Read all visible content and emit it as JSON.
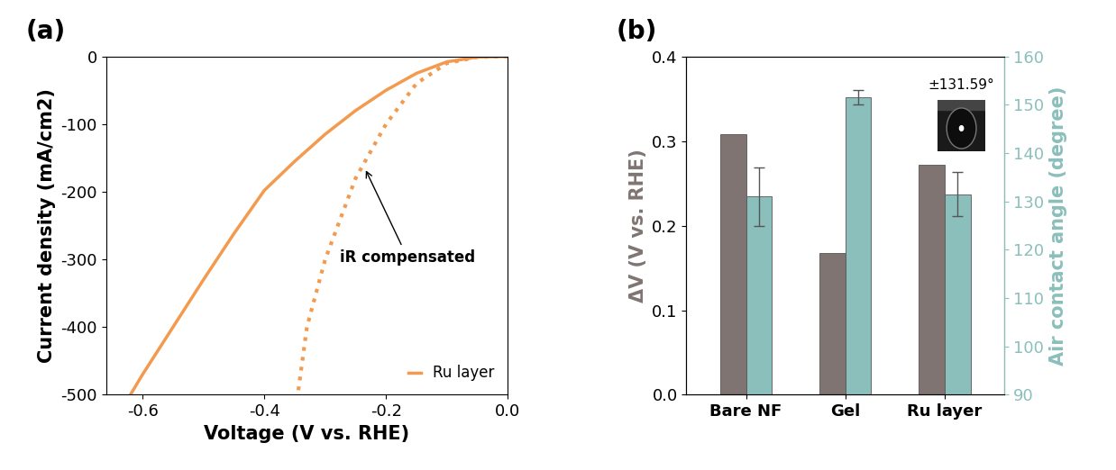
{
  "chart_data": [
    {
      "type": "line",
      "title": "(a)",
      "x_label": "Voltage (V vs. RHE)",
      "y_label": "Current density (mA/cm2)",
      "xlim": [
        -0.66,
        0.0
      ],
      "xticks": [
        -0.6,
        -0.4,
        -0.2,
        0.0
      ],
      "ylim": [
        -500,
        0
      ],
      "yticks": [
        -500,
        -400,
        -300,
        -200,
        -100,
        0
      ],
      "legend": "lower right",
      "series": [
        {
          "name": "Ru layer",
          "color": "#f39a4f",
          "line_style": "solid",
          "x": [
            0.0,
            -0.05,
            -0.1,
            -0.15,
            -0.2,
            -0.25,
            -0.3,
            -0.35,
            -0.4,
            -0.45,
            -0.5,
            -0.55,
            -0.6,
            -0.62
          ],
          "values": [
            0,
            -1,
            -8,
            -25,
            -50,
            -80,
            -115,
            -155,
            -198,
            -262,
            -330,
            -400,
            -470,
            -500
          ]
        },
        {
          "color": "#f39a4f",
          "line_style": "dotted",
          "x": [
            0.0,
            -0.05,
            -0.1,
            -0.15,
            -0.2,
            -0.25,
            -0.3,
            -0.33,
            -0.345
          ],
          "values": [
            0,
            -1,
            -10,
            -40,
            -100,
            -180,
            -300,
            -400,
            -500
          ]
        }
      ],
      "annotations": [
        {
          "text": "iR compensated",
          "x": -0.235,
          "y": -165
        }
      ]
    },
    {
      "type": "bar",
      "title": "(b)",
      "y_label": "ΔV (V vs. RHE)",
      "y2_label": "Air contact angle (degree)",
      "categories": [
        "Bare NF",
        "Gel",
        "Ru layer"
      ],
      "ylim": [
        0,
        0.4
      ],
      "yticks": [
        0.0,
        0.1,
        0.2,
        0.3,
        0.4
      ],
      "y2lim": [
        90,
        160
      ],
      "y2ticks": [
        90,
        100,
        110,
        120,
        130,
        140,
        150,
        160
      ],
      "series": [
        {
          "color": "#7f7472",
          "values": [
            0.308,
            0.168,
            0.272
          ]
        },
        {
          "color": "#8bbfbc",
          "axis": "y2",
          "values": [
            131.0,
            151.5,
            131.5
          ],
          "errors": [
            6.0,
            1.5,
            4.5
          ]
        }
      ],
      "annotations": [
        {
          "text": "±131.59°"
        }
      ]
    }
  ]
}
